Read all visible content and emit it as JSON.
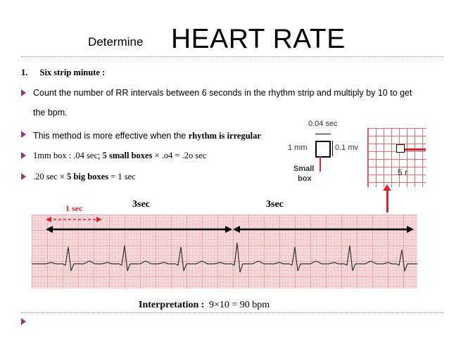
{
  "title": {
    "prefix": "Determine",
    "main": "HEART RATE"
  },
  "heading": {
    "number": "1.",
    "text": "Six strip minute :"
  },
  "bullets": [
    {
      "line1": "Count the number of RR intervals between 6 seconds in the rhythm strip and multiply by 10 to get",
      "line2": "the bpm."
    },
    {
      "text": "This method is more effective when the ",
      "bold": "rhythm is irregular"
    },
    {
      "pre": "1mm box : .04 sec; ",
      "bold": "5 small boxes",
      "post": " × .o4 = .2o sec"
    },
    {
      "pre": ".20 sec × ",
      "bold": "5 big boxes",
      "post": " = 1 sec"
    }
  ],
  "inset": {
    "time_label": "0.04 sec",
    "height_label": "1 mm",
    "voltage_label": "0.1 mv",
    "small_box_label_1": "Small",
    "small_box_label_2": "box",
    "cut_label": "5 r"
  },
  "strip_labels": {
    "one_sec": "1 sec",
    "left_3sec": "3sec",
    "right_3sec": "3sec"
  },
  "interpretation": {
    "label": "Interpretation :",
    "value": "9×10 = 90 bpm"
  },
  "colors": {
    "bullet": "#8e3a7b",
    "accent_red": "#d8252c",
    "rule": "#b07aa1"
  }
}
